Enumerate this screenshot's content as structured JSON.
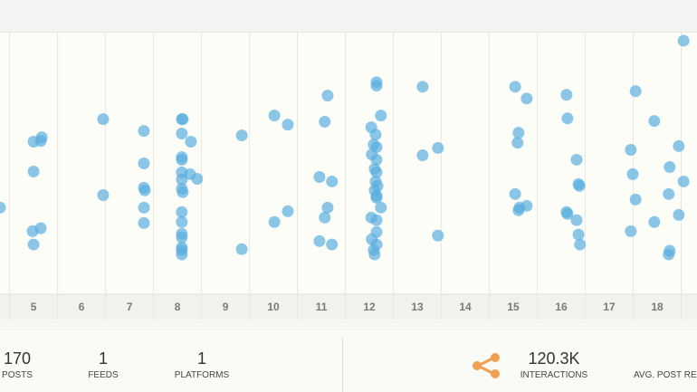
{
  "chart_data": {
    "type": "scatter",
    "color": "#5aaee0",
    "xlim": [
      4.3,
      18.83
    ],
    "ylim": [
      0,
      100
    ],
    "xticks": [
      5,
      6,
      7,
      8,
      9,
      10,
      11,
      12,
      13,
      14,
      15,
      16,
      17,
      18
    ],
    "grid": true,
    "x": [
      4.3,
      5.0,
      5.17,
      5.15,
      5.0,
      4.98,
      5.15,
      5.0,
      6.45,
      6.45,
      7.3,
      7.3,
      7.3,
      7.32,
      7.3,
      7.3,
      8.09,
      8.11,
      8.09,
      8.28,
      8.09,
      8.09,
      8.09,
      8.26,
      8.41,
      8.09,
      8.09,
      8.11,
      8.09,
      8.09,
      8.09,
      8.09,
      8.09,
      8.09,
      8.09,
      9.34,
      9.34,
      10.02,
      10.3,
      10.3,
      10.02,
      11.13,
      11.07,
      10.96,
      11.22,
      11.13,
      11.07,
      10.96,
      11.22,
      12.15,
      12.15,
      12.24,
      12.04,
      12.13,
      12.09,
      12.15,
      12.05,
      12.15,
      12.11,
      12.15,
      12.13,
      12.17,
      12.11,
      12.15,
      12.15,
      12.24,
      12.04,
      12.15,
      12.15,
      12.05,
      12.15,
      12.09,
      12.11,
      13.11,
      13.43,
      13.11,
      13.43,
      15.04,
      15.28,
      15.11,
      15.09,
      15.04,
      15.13,
      15.28,
      15.11,
      16.11,
      16.13,
      16.32,
      16.36,
      16.38,
      16.11,
      16.13,
      16.32,
      16.36,
      16.39,
      17.55,
      17.94,
      17.45,
      18.26,
      17.49,
      18.55,
      17.55,
      18.24,
      18.45,
      17.94,
      17.45,
      18.26,
      18.24,
      18.45,
      18.55
    ],
    "values": [
      33.1,
      58.3,
      60.0,
      58.6,
      46.9,
      24.1,
      25.2,
      19.0,
      66.9,
      37.9,
      62.4,
      50.0,
      40.7,
      39.7,
      33.1,
      27.2,
      66.9,
      66.9,
      61.4,
      58.3,
      52.4,
      51.4,
      46.6,
      45.9,
      44.1,
      43.8,
      40.3,
      39.0,
      31.4,
      27.6,
      23.1,
      21.7,
      17.9,
      16.9,
      15.2,
      60.7,
      17.2,
      68.3,
      64.8,
      31.7,
      27.6,
      75.9,
      65.9,
      44.8,
      43.1,
      33.1,
      29.3,
      20.3,
      19.0,
      81.0,
      79.7,
      68.3,
      63.8,
      61.0,
      57.2,
      56.2,
      53.4,
      51.4,
      47.9,
      46.6,
      43.1,
      41.4,
      39.7,
      37.6,
      36.9,
      33.1,
      29.3,
      28.3,
      23.8,
      21.0,
      19.0,
      16.9,
      15.2,
      79.3,
      55.9,
      53.1,
      22.4,
      79.3,
      74.8,
      61.7,
      57.9,
      38.3,
      33.1,
      33.8,
      32.1,
      76.2,
      67.2,
      51.4,
      42.1,
      41.4,
      31.4,
      30.7,
      28.3,
      22.8,
      19.0,
      77.6,
      66.2,
      55.2,
      48.6,
      45.9,
      43.1,
      36.2,
      38.3,
      30.3,
      27.6,
      24.1,
      16.6,
      15.2,
      56.6,
      96.9
    ]
  },
  "stats": [
    {
      "value": "170",
      "label": "POSTS"
    },
    {
      "value": "1",
      "label": "FEEDS"
    },
    {
      "value": "1",
      "label": "PLATFORMS"
    },
    {
      "value": "120.3K",
      "label": "INTERACTIONS"
    },
    {
      "label": "AVG. POST RES"
    }
  ]
}
